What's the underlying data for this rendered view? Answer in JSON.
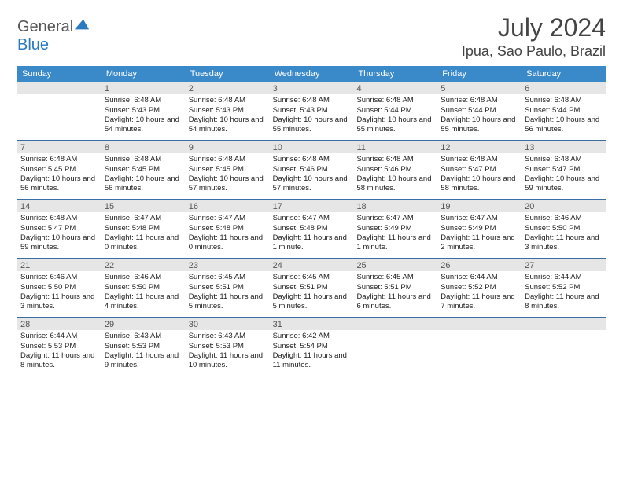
{
  "logo": {
    "text1": "General",
    "text2": "Blue"
  },
  "title": "July 2024",
  "location": "Ipua, Sao Paulo, Brazil",
  "colors": {
    "header_bar": "#3a89c9",
    "week_divider": "#3a6ea5",
    "daynum_bg": "#e6e6e6",
    "logo_blue": "#2a7ac0"
  },
  "days_of_week": [
    "Sunday",
    "Monday",
    "Tuesday",
    "Wednesday",
    "Thursday",
    "Friday",
    "Saturday"
  ],
  "weeks": [
    [
      {
        "n": "",
        "sr": "",
        "ss": "",
        "dl": ""
      },
      {
        "n": "1",
        "sr": "Sunrise: 6:48 AM",
        "ss": "Sunset: 5:43 PM",
        "dl": "Daylight: 10 hours and 54 minutes."
      },
      {
        "n": "2",
        "sr": "Sunrise: 6:48 AM",
        "ss": "Sunset: 5:43 PM",
        "dl": "Daylight: 10 hours and 54 minutes."
      },
      {
        "n": "3",
        "sr": "Sunrise: 6:48 AM",
        "ss": "Sunset: 5:43 PM",
        "dl": "Daylight: 10 hours and 55 minutes."
      },
      {
        "n": "4",
        "sr": "Sunrise: 6:48 AM",
        "ss": "Sunset: 5:44 PM",
        "dl": "Daylight: 10 hours and 55 minutes."
      },
      {
        "n": "5",
        "sr": "Sunrise: 6:48 AM",
        "ss": "Sunset: 5:44 PM",
        "dl": "Daylight: 10 hours and 55 minutes."
      },
      {
        "n": "6",
        "sr": "Sunrise: 6:48 AM",
        "ss": "Sunset: 5:44 PM",
        "dl": "Daylight: 10 hours and 56 minutes."
      }
    ],
    [
      {
        "n": "7",
        "sr": "Sunrise: 6:48 AM",
        "ss": "Sunset: 5:45 PM",
        "dl": "Daylight: 10 hours and 56 minutes."
      },
      {
        "n": "8",
        "sr": "Sunrise: 6:48 AM",
        "ss": "Sunset: 5:45 PM",
        "dl": "Daylight: 10 hours and 56 minutes."
      },
      {
        "n": "9",
        "sr": "Sunrise: 6:48 AM",
        "ss": "Sunset: 5:45 PM",
        "dl": "Daylight: 10 hours and 57 minutes."
      },
      {
        "n": "10",
        "sr": "Sunrise: 6:48 AM",
        "ss": "Sunset: 5:46 PM",
        "dl": "Daylight: 10 hours and 57 minutes."
      },
      {
        "n": "11",
        "sr": "Sunrise: 6:48 AM",
        "ss": "Sunset: 5:46 PM",
        "dl": "Daylight: 10 hours and 58 minutes."
      },
      {
        "n": "12",
        "sr": "Sunrise: 6:48 AM",
        "ss": "Sunset: 5:47 PM",
        "dl": "Daylight: 10 hours and 58 minutes."
      },
      {
        "n": "13",
        "sr": "Sunrise: 6:48 AM",
        "ss": "Sunset: 5:47 PM",
        "dl": "Daylight: 10 hours and 59 minutes."
      }
    ],
    [
      {
        "n": "14",
        "sr": "Sunrise: 6:48 AM",
        "ss": "Sunset: 5:47 PM",
        "dl": "Daylight: 10 hours and 59 minutes."
      },
      {
        "n": "15",
        "sr": "Sunrise: 6:47 AM",
        "ss": "Sunset: 5:48 PM",
        "dl": "Daylight: 11 hours and 0 minutes."
      },
      {
        "n": "16",
        "sr": "Sunrise: 6:47 AM",
        "ss": "Sunset: 5:48 PM",
        "dl": "Daylight: 11 hours and 0 minutes."
      },
      {
        "n": "17",
        "sr": "Sunrise: 6:47 AM",
        "ss": "Sunset: 5:48 PM",
        "dl": "Daylight: 11 hours and 1 minute."
      },
      {
        "n": "18",
        "sr": "Sunrise: 6:47 AM",
        "ss": "Sunset: 5:49 PM",
        "dl": "Daylight: 11 hours and 1 minute."
      },
      {
        "n": "19",
        "sr": "Sunrise: 6:47 AM",
        "ss": "Sunset: 5:49 PM",
        "dl": "Daylight: 11 hours and 2 minutes."
      },
      {
        "n": "20",
        "sr": "Sunrise: 6:46 AM",
        "ss": "Sunset: 5:50 PM",
        "dl": "Daylight: 11 hours and 3 minutes."
      }
    ],
    [
      {
        "n": "21",
        "sr": "Sunrise: 6:46 AM",
        "ss": "Sunset: 5:50 PM",
        "dl": "Daylight: 11 hours and 3 minutes."
      },
      {
        "n": "22",
        "sr": "Sunrise: 6:46 AM",
        "ss": "Sunset: 5:50 PM",
        "dl": "Daylight: 11 hours and 4 minutes."
      },
      {
        "n": "23",
        "sr": "Sunrise: 6:45 AM",
        "ss": "Sunset: 5:51 PM",
        "dl": "Daylight: 11 hours and 5 minutes."
      },
      {
        "n": "24",
        "sr": "Sunrise: 6:45 AM",
        "ss": "Sunset: 5:51 PM",
        "dl": "Daylight: 11 hours and 5 minutes."
      },
      {
        "n": "25",
        "sr": "Sunrise: 6:45 AM",
        "ss": "Sunset: 5:51 PM",
        "dl": "Daylight: 11 hours and 6 minutes."
      },
      {
        "n": "26",
        "sr": "Sunrise: 6:44 AM",
        "ss": "Sunset: 5:52 PM",
        "dl": "Daylight: 11 hours and 7 minutes."
      },
      {
        "n": "27",
        "sr": "Sunrise: 6:44 AM",
        "ss": "Sunset: 5:52 PM",
        "dl": "Daylight: 11 hours and 8 minutes."
      }
    ],
    [
      {
        "n": "28",
        "sr": "Sunrise: 6:44 AM",
        "ss": "Sunset: 5:53 PM",
        "dl": "Daylight: 11 hours and 8 minutes."
      },
      {
        "n": "29",
        "sr": "Sunrise: 6:43 AM",
        "ss": "Sunset: 5:53 PM",
        "dl": "Daylight: 11 hours and 9 minutes."
      },
      {
        "n": "30",
        "sr": "Sunrise: 6:43 AM",
        "ss": "Sunset: 5:53 PM",
        "dl": "Daylight: 11 hours and 10 minutes."
      },
      {
        "n": "31",
        "sr": "Sunrise: 6:42 AM",
        "ss": "Sunset: 5:54 PM",
        "dl": "Daylight: 11 hours and 11 minutes."
      },
      {
        "n": "",
        "sr": "",
        "ss": "",
        "dl": ""
      },
      {
        "n": "",
        "sr": "",
        "ss": "",
        "dl": ""
      },
      {
        "n": "",
        "sr": "",
        "ss": "",
        "dl": ""
      }
    ]
  ]
}
